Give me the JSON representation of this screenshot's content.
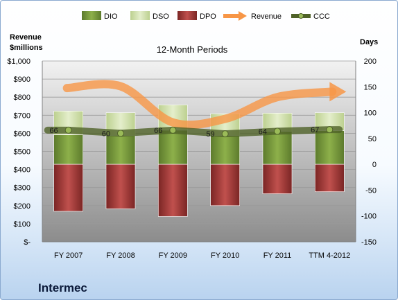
{
  "company": "Intermec",
  "chart_data": {
    "type": "bar",
    "title": "12-Month Periods",
    "left_axis_label": [
      "Revenue",
      "$millions"
    ],
    "right_axis_label": "Days",
    "categories": [
      "FY 2007",
      "FY 2008",
      "FY 2009",
      "FY 2010",
      "FY 2011",
      "TTM 4-2012"
    ],
    "left_ticks": [
      "$-",
      "$100",
      "$200",
      "$300",
      "$400",
      "$500",
      "$600",
      "$700",
      "$800",
      "$900",
      "$1,000"
    ],
    "left_range": [
      0,
      1000
    ],
    "right_ticks": [
      "-150",
      "-100",
      "-50",
      "0",
      "50",
      "100",
      "150",
      "200"
    ],
    "right_range": [
      -150,
      200
    ],
    "legend": [
      {
        "name": "DIO",
        "kind": "bar",
        "color": "#77933c"
      },
      {
        "name": "DSO",
        "kind": "bar",
        "color": "#d7e4bd"
      },
      {
        "name": "DPO",
        "kind": "bar",
        "color": "#953735"
      },
      {
        "name": "Revenue",
        "kind": "arrow",
        "color": "#f79646"
      },
      {
        "name": "CCC",
        "kind": "line",
        "color": "#4f6228"
      }
    ],
    "series": [
      {
        "name": "DIO",
        "values": [
          57,
          56,
          66,
          56,
          64,
          65
        ]
      },
      {
        "name": "DSO",
        "values": [
          46,
          44,
          49,
          42,
          35,
          35
        ]
      },
      {
        "name": "DPO",
        "values": [
          -91,
          -86,
          -101,
          -80,
          -57,
          -53
        ]
      },
      {
        "name": "Revenue",
        "values": [
          850,
          860,
          660,
          680,
          800,
          830
        ]
      },
      {
        "name": "CCC",
        "values": [
          66,
          60,
          66,
          59,
          64,
          67
        ]
      }
    ],
    "ccc_labels": [
      "66",
      "60",
      "66",
      "59",
      "64",
      "67"
    ],
    "legend_position": "top",
    "grid": true
  }
}
